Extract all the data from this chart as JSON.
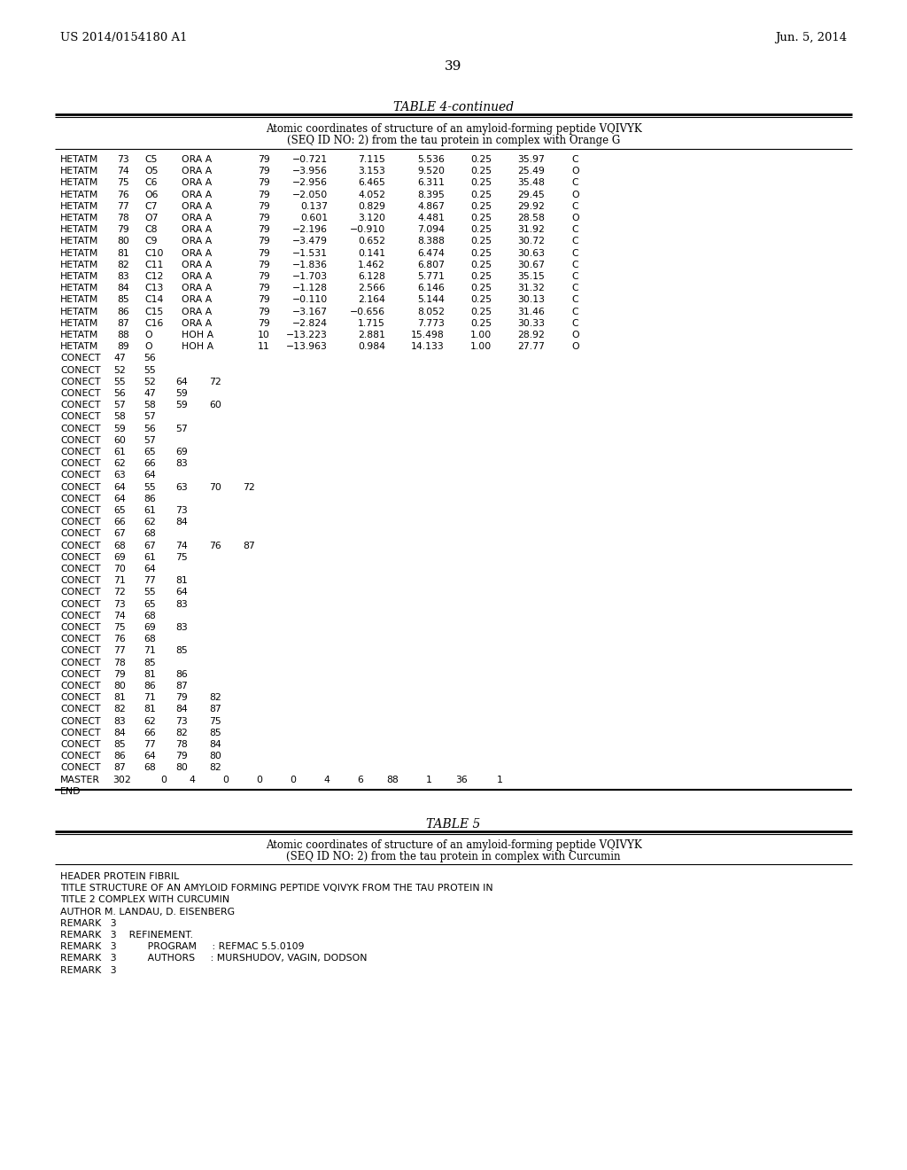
{
  "page_header_left": "US 2014/0154180 A1",
  "page_header_right": "Jun. 5, 2014",
  "page_number": "39",
  "table4_title": "TABLE 4-continued",
  "table4_subtitle1": "Atomic coordinates of structure of an amyloid-forming peptide VQIVYK",
  "table4_subtitle2": "(SEQ ID NO: 2) from the tau protein in complex with Orange G",
  "table4_hetatm_rows": [
    [
      "HETATM",
      "73",
      "C5",
      "ORA A",
      "79",
      "−0.721",
      "7.115",
      "5.536",
      "0.25",
      "35.97",
      "C"
    ],
    [
      "HETATM",
      "74",
      "O5",
      "ORA A",
      "79",
      "−3.956",
      "3.153",
      "9.520",
      "0.25",
      "25.49",
      "O"
    ],
    [
      "HETATM",
      "75",
      "C6",
      "ORA A",
      "79",
      "−2.956",
      "6.465",
      "6.311",
      "0.25",
      "35.48",
      "C"
    ],
    [
      "HETATM",
      "76",
      "O6",
      "ORA A",
      "79",
      "−2.050",
      "4.052",
      "8.395",
      "0.25",
      "29.45",
      "O"
    ],
    [
      "HETATM",
      "77",
      "C7",
      "ORA A",
      "79",
      "0.137",
      "0.829",
      "4.867",
      "0.25",
      "29.92",
      "C"
    ],
    [
      "HETATM",
      "78",
      "O7",
      "ORA A",
      "79",
      "0.601",
      "3.120",
      "4.481",
      "0.25",
      "28.58",
      "O"
    ],
    [
      "HETATM",
      "79",
      "C8",
      "ORA A",
      "79",
      "−2.196",
      "−0.910",
      "7.094",
      "0.25",
      "31.92",
      "C"
    ],
    [
      "HETATM",
      "80",
      "C9",
      "ORA A",
      "79",
      "−3.479",
      "0.652",
      "8.388",
      "0.25",
      "30.72",
      "C"
    ],
    [
      "HETATM",
      "81",
      "C10",
      "ORA A",
      "79",
      "−1.531",
      "0.141",
      "6.474",
      "0.25",
      "30.63",
      "C"
    ],
    [
      "HETATM",
      "82",
      "C11",
      "ORA A",
      "79",
      "−1.836",
      "1.462",
      "6.807",
      "0.25",
      "30.67",
      "C"
    ],
    [
      "HETATM",
      "83",
      "C12",
      "ORA A",
      "79",
      "−1.703",
      "6.128",
      "5.771",
      "0.25",
      "35.15",
      "C"
    ],
    [
      "HETATM",
      "84",
      "C13",
      "ORA A",
      "79",
      "−1.128",
      "2.566",
      "6.146",
      "0.25",
      "31.32",
      "C"
    ],
    [
      "HETATM",
      "85",
      "C14",
      "ORA A",
      "79",
      "−0.110",
      "2.164",
      "5.144",
      "0.25",
      "30.13",
      "C"
    ],
    [
      "HETATM",
      "86",
      "C15",
      "ORA A",
      "79",
      "−3.167",
      "−0.656",
      "8.052",
      "0.25",
      "31.46",
      "C"
    ],
    [
      "HETATM",
      "87",
      "C16",
      "ORA A",
      "79",
      "−2.824",
      "1.715",
      "7.773",
      "0.25",
      "30.33",
      "C"
    ],
    [
      "HETATM",
      "88",
      "O",
      "HOH A",
      "10",
      "−13.223",
      "2.881",
      "15.498",
      "1.00",
      "28.92",
      "O"
    ],
    [
      "HETATM",
      "89",
      "O",
      "HOH A",
      "11",
      "−13.963",
      "0.984",
      "14.133",
      "1.00",
      "27.77",
      "O"
    ]
  ],
  "table4_conect_rows": [
    [
      "CONECT",
      "47",
      "56",
      "",
      "",
      ""
    ],
    [
      "CONECT",
      "52",
      "55",
      "",
      "",
      ""
    ],
    [
      "CONECT",
      "55",
      "52",
      "64",
      "72",
      ""
    ],
    [
      "CONECT",
      "56",
      "47",
      "59",
      "",
      ""
    ],
    [
      "CONECT",
      "57",
      "58",
      "59",
      "60",
      ""
    ],
    [
      "CONECT",
      "58",
      "57",
      "",
      "",
      ""
    ],
    [
      "CONECT",
      "59",
      "56",
      "57",
      "",
      ""
    ],
    [
      "CONECT",
      "60",
      "57",
      "",
      "",
      ""
    ],
    [
      "CONECT",
      "61",
      "65",
      "69",
      "",
      ""
    ],
    [
      "CONECT",
      "62",
      "66",
      "83",
      "",
      ""
    ],
    [
      "CONECT",
      "63",
      "64",
      "",
      "",
      ""
    ],
    [
      "CONECT",
      "64",
      "55",
      "63",
      "70",
      "72"
    ],
    [
      "CONECT",
      "64",
      "86",
      "",
      "",
      ""
    ],
    [
      "CONECT",
      "65",
      "61",
      "73",
      "",
      ""
    ],
    [
      "CONECT",
      "66",
      "62",
      "84",
      "",
      ""
    ],
    [
      "CONECT",
      "67",
      "68",
      "",
      "",
      ""
    ],
    [
      "CONECT",
      "68",
      "67",
      "74",
      "76",
      "87"
    ],
    [
      "CONECT",
      "69",
      "61",
      "75",
      "",
      ""
    ],
    [
      "CONECT",
      "70",
      "64",
      "",
      "",
      ""
    ],
    [
      "CONECT",
      "71",
      "77",
      "81",
      "",
      ""
    ],
    [
      "CONECT",
      "72",
      "55",
      "64",
      "",
      ""
    ],
    [
      "CONECT",
      "73",
      "65",
      "83",
      "",
      ""
    ],
    [
      "CONECT",
      "74",
      "68",
      "",
      "",
      ""
    ],
    [
      "CONECT",
      "75",
      "69",
      "83",
      "",
      ""
    ],
    [
      "CONECT",
      "76",
      "68",
      "",
      "",
      ""
    ],
    [
      "CONECT",
      "77",
      "71",
      "85",
      "",
      ""
    ],
    [
      "CONECT",
      "78",
      "85",
      "",
      "",
      ""
    ],
    [
      "CONECT",
      "79",
      "81",
      "86",
      "",
      ""
    ],
    [
      "CONECT",
      "80",
      "86",
      "87",
      "",
      ""
    ],
    [
      "CONECT",
      "81",
      "71",
      "79",
      "82",
      ""
    ],
    [
      "CONECT",
      "82",
      "81",
      "84",
      "87",
      ""
    ],
    [
      "CONECT",
      "83",
      "62",
      "73",
      "75",
      ""
    ],
    [
      "CONECT",
      "84",
      "66",
      "82",
      "85",
      ""
    ],
    [
      "CONECT",
      "85",
      "77",
      "78",
      "84",
      ""
    ],
    [
      "CONECT",
      "86",
      "64",
      "79",
      "80",
      ""
    ],
    [
      "CONECT",
      "87",
      "68",
      "80",
      "82",
      ""
    ]
  ],
  "master_values": [
    "302",
    "0",
    "4",
    "0",
    "0",
    "0",
    "4",
    "6",
    "88",
    "1",
    "36",
    "1"
  ],
  "table5_title": "TABLE 5",
  "table5_subtitle1": "Atomic coordinates of structure of an amyloid-forming peptide VQIVYK",
  "table5_subtitle2": "(SEQ ID NO: 2) from the tau protein in complex with Curcumin",
  "table5_content": [
    "HEADER PROTEIN FIBRIL",
    "TITLE STRUCTURE OF AN AMYLOID FORMING PEPTIDE VQIVYK FROM THE TAU PROTEIN IN",
    "TITLE 2 COMPLEX WITH CURCUMIN",
    "AUTHOR M. LANDAU, D. EISENBERG",
    "REMARK   3",
    "REMARK   3    REFINEMENT.",
    "REMARK   3          PROGRAM     : REFMAC 5.5.0109",
    "REMARK   3          AUTHORS     : MURSHUDOV, VAGIN, DODSON",
    "REMARK   3"
  ],
  "background_color": "#ffffff",
  "text_color": "#000000"
}
